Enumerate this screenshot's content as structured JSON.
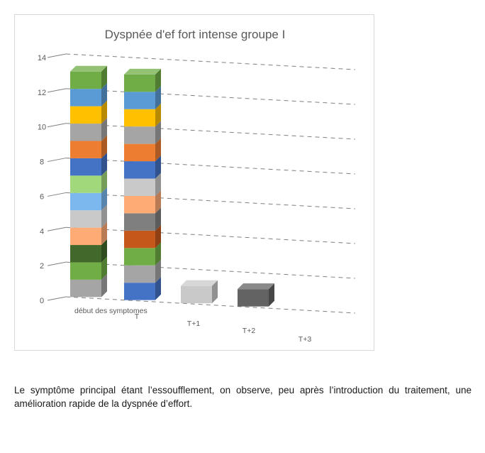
{
  "chart_data": {
    "type": "bar",
    "stacked": true,
    "three_d": true,
    "title": "Dyspnée d'ef fort intense groupe I",
    "xlabel": "",
    "ylabel": "",
    "ylim": [
      0,
      14
    ],
    "yticks": [
      "0",
      "2",
      "4",
      "6",
      "8",
      "10",
      "12",
      "14"
    ],
    "categories": [
      "début des symptomes",
      "T",
      "T+1",
      "T+2",
      "T+3"
    ],
    "grid": true,
    "legend": "none",
    "stacks": [
      {
        "category": "début des symptomes",
        "total": 13,
        "colors": [
          "#a5a5a5",
          "#70ad47",
          "#43682b",
          "#ffab75",
          "#c9c9c9",
          "#7cb8ee",
          "#a2d87c",
          "#4472c4",
          "#ed7d31",
          "#a5a5a5",
          "#ffc000",
          "#5b9bd5",
          "#70ad47"
        ]
      },
      {
        "category": "T",
        "total": 13,
        "colors": [
          "#4472c4",
          "#a5a5a5",
          "#70ad47",
          "#c5571a",
          "#7f7f7f",
          "#ffab75",
          "#c9c9c9",
          "#4472c4",
          "#ed7d31",
          "#a5a5a5",
          "#ffc000",
          "#5b9bd5",
          "#70ad47"
        ]
      },
      {
        "category": "T+1",
        "total": 1,
        "colors": [
          "#c9c9c9"
        ]
      },
      {
        "category": "T+2",
        "total": 1,
        "colors": [
          "#636363"
        ]
      },
      {
        "category": "T+3",
        "total": 0,
        "colors": []
      }
    ]
  },
  "caption": "Le symptôme principal étant l’essoufflement, on observe, peu après l’introduction du traitement, une amélioration rapide de la dyspnée d’effort."
}
